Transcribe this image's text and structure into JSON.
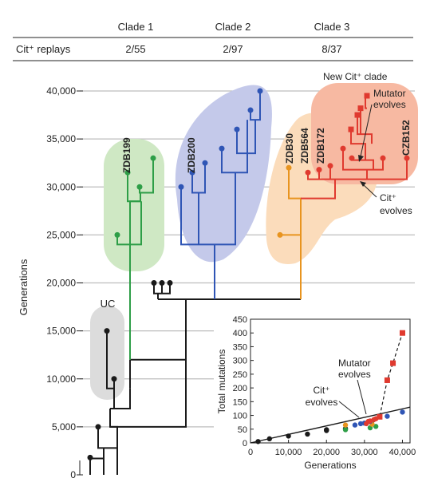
{
  "table": {
    "headers": [
      "Clade 1",
      "Clade 2",
      "Clade 3"
    ],
    "row_label": "Cit⁺ replays",
    "values": [
      "2/55",
      "2/97",
      "8/37"
    ]
  },
  "tree": {
    "y_axis_label": "Generations",
    "y_ticks": [
      "0",
      "5,000",
      "10,000",
      "15,000",
      "20,000",
      "25,000",
      "30,000",
      "35,000",
      "40,000"
    ],
    "y_tick_values": [
      0,
      5000,
      10000,
      15000,
      20000,
      25000,
      30000,
      35000,
      40000
    ],
    "labels": {
      "uc": "UC",
      "zdb199": "ZDB199",
      "zdb200": "ZDB200",
      "zdb30": "ZDB30",
      "zdb564": "ZDB564",
      "zdb172": "ZDB172",
      "czb152": "CZB152",
      "new_cit_clade": "New Cit⁺ clade",
      "mutator_evolves": [
        "Mutator",
        "evolves"
      ],
      "cit_evolves": [
        "Cit⁺",
        "evolves"
      ]
    },
    "colors": {
      "black": "#1a1a1a",
      "clade1": "#2e9e47",
      "clade2": "#2f55b5",
      "clade3": "#e8941f",
      "cit": "#e03a2f",
      "uc_bg": "#dcdcdc",
      "clade1_bg": "#cfe8c4",
      "clade2_bg": "#c4c9ea",
      "clade3_bg": "#fbdcbb",
      "cit_bg": "#f7b9a2"
    }
  },
  "chart_data": {
    "type": "scatter",
    "title": "",
    "xlabel": "Generations",
    "ylabel": "Total mutations",
    "xlim": [
      0,
      40000
    ],
    "ylim": [
      0,
      450
    ],
    "x_ticks": [
      "0",
      "10,000",
      "20,000",
      "30,000",
      "40,000"
    ],
    "y_ticks": [
      "0",
      "50",
      "100",
      "150",
      "200",
      "250",
      "300",
      "350",
      "400",
      "450"
    ],
    "annotations": {
      "mutator_evolves": [
        "Mutator",
        "evolves"
      ],
      "cit_evolves": [
        "Cit⁺",
        "evolves"
      ]
    },
    "series": [
      {
        "color": "#1a1a1a",
        "marker": "circle",
        "points": [
          [
            2000,
            5
          ],
          [
            5000,
            15
          ],
          [
            10000,
            25
          ],
          [
            15000,
            32
          ],
          [
            20000,
            45
          ],
          [
            20000,
            48
          ],
          [
            25000,
            52
          ]
        ]
      },
      {
        "color": "#2e9e47",
        "marker": "circle",
        "points": [
          [
            25000,
            48
          ],
          [
            31500,
            55
          ],
          [
            33000,
            60
          ]
        ]
      },
      {
        "color": "#e8941f",
        "marker": "circle",
        "points": [
          [
            25000,
            65
          ],
          [
            32000,
            68
          ]
        ]
      },
      {
        "color": "#2f55b5",
        "marker": "circle",
        "points": [
          [
            27500,
            65
          ],
          [
            29000,
            70
          ],
          [
            30000,
            72
          ],
          [
            31500,
            78
          ],
          [
            36000,
            97
          ],
          [
            40000,
            112
          ]
        ]
      },
      {
        "color": "#e03a2f",
        "marker": "circle",
        "points": [
          [
            30500,
            70
          ],
          [
            31000,
            78
          ],
          [
            31500,
            80
          ],
          [
            32500,
            85
          ],
          [
            33000,
            88
          ]
        ]
      },
      {
        "color": "#e03a2f",
        "marker": "square",
        "points": [
          [
            34000,
            95
          ],
          [
            36000,
            228
          ],
          [
            37500,
            290
          ],
          [
            40000,
            400
          ]
        ]
      }
    ],
    "fit_line": {
      "from": [
        0,
        0
      ],
      "to": [
        42000,
        130
      ],
      "color": "#1a1a1a"
    },
    "mutator_line": {
      "points": [
        [
          32000,
          70
        ],
        [
          34000,
          95
        ],
        [
          36000,
          228
        ],
        [
          37500,
          290
        ],
        [
          40000,
          400
        ]
      ],
      "color": "#1a1a1a",
      "dashed": true
    }
  }
}
